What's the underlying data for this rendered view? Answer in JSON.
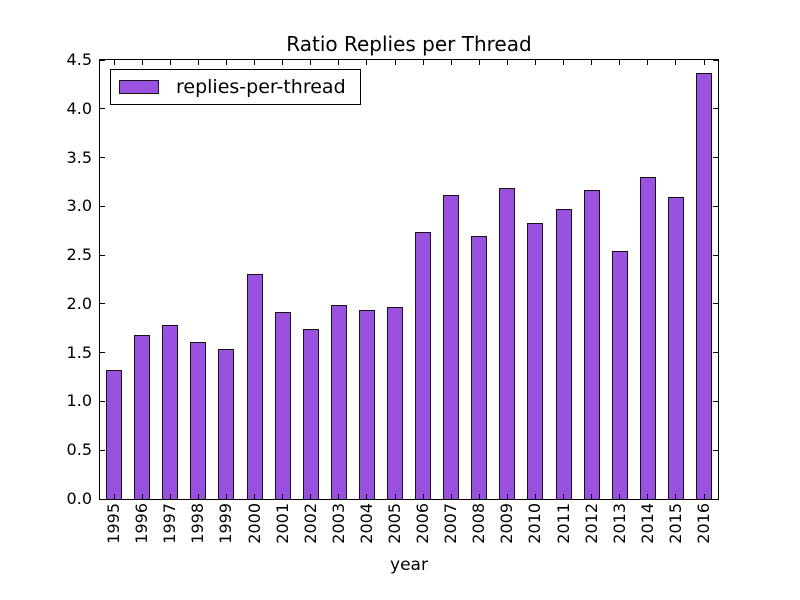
{
  "colors": {
    "background": "#ffffff",
    "bar_fill": "#9B51E0",
    "bar_edge": "#151515",
    "axis": "#000000",
    "text": "#000000"
  },
  "chart_data": {
    "type": "bar",
    "title": "Ratio Replies per Thread",
    "xlabel": "year",
    "ylabel": "",
    "categories": [
      "1995",
      "1996",
      "1997",
      "1998",
      "1999",
      "2000",
      "2001",
      "2002",
      "2003",
      "2004",
      "2005",
      "2006",
      "2007",
      "2008",
      "2009",
      "2010",
      "2011",
      "2012",
      "2013",
      "2014",
      "2015",
      "2016"
    ],
    "series": [
      {
        "name": "replies-per-thread",
        "values": [
          1.32,
          1.68,
          1.78,
          1.61,
          1.54,
          2.31,
          1.92,
          1.74,
          1.99,
          1.94,
          1.97,
          2.74,
          3.12,
          2.7,
          3.19,
          2.83,
          2.97,
          3.17,
          2.54,
          3.3,
          3.1,
          4.37
        ]
      }
    ],
    "ylim": [
      0,
      4.5
    ],
    "ytick_step": 0.5,
    "ytick_labels": [
      "0.0",
      "0.5",
      "1.0",
      "1.5",
      "2.0",
      "2.5",
      "3.0",
      "3.5",
      "4.0",
      "4.5"
    ],
    "grid": false,
    "tick_direction": "in",
    "legend": {
      "labels": [
        "replies-per-thread"
      ],
      "position": "upper left"
    },
    "bar_color": "#9B51E0"
  }
}
